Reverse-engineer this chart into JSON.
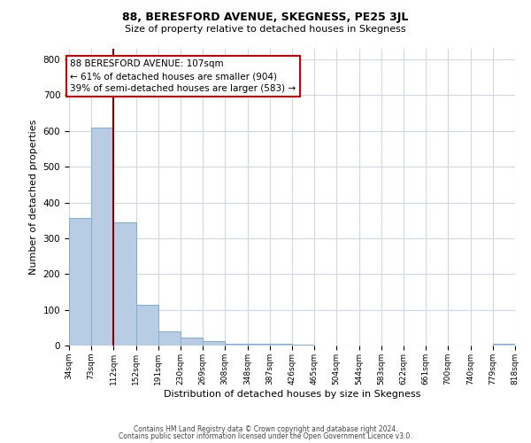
{
  "title": "88, BERESFORD AVENUE, SKEGNESS, PE25 3JL",
  "subtitle": "Size of property relative to detached houses in Skegness",
  "xlabel": "Distribution of detached houses by size in Skegness",
  "ylabel": "Number of detached properties",
  "bin_edges": [
    34,
    73,
    112,
    152,
    191,
    230,
    269,
    308,
    348,
    387,
    426,
    465,
    504,
    544,
    583,
    622,
    661,
    700,
    740,
    779,
    818
  ],
  "bin_labels": [
    "34sqm",
    "73sqm",
    "112sqm",
    "152sqm",
    "191sqm",
    "230sqm",
    "269sqm",
    "308sqm",
    "348sqm",
    "387sqm",
    "426sqm",
    "465sqm",
    "504sqm",
    "544sqm",
    "583sqm",
    "622sqm",
    "661sqm",
    "700sqm",
    "740sqm",
    "779sqm",
    "818sqm"
  ],
  "counts": [
    358,
    610,
    345,
    115,
    40,
    22,
    13,
    5,
    5,
    5,
    2,
    0,
    0,
    0,
    0,
    0,
    0,
    0,
    0,
    5
  ],
  "bar_color": "#b8cce4",
  "bar_edge_color": "#7bafd4",
  "vline_x": 112,
  "vline_color": "#8b0000",
  "annotation_text": "88 BERESFORD AVENUE: 107sqm\n← 61% of detached houses are smaller (904)\n39% of semi-detached houses are larger (583) →",
  "annotation_box_color": "#ffffff",
  "annotation_edge_color": "#cc0000",
  "ylim": [
    0,
    830
  ],
  "footer_line1": "Contains HM Land Registry data © Crown copyright and database right 2024.",
  "footer_line2": "Contains public sector information licensed under the Open Government Licence v3.0.",
  "background_color": "#ffffff",
  "grid_color": "#d0d8e8",
  "title_fontsize": 9,
  "subtitle_fontsize": 8,
  "ylabel_fontsize": 8,
  "xlabel_fontsize": 8
}
